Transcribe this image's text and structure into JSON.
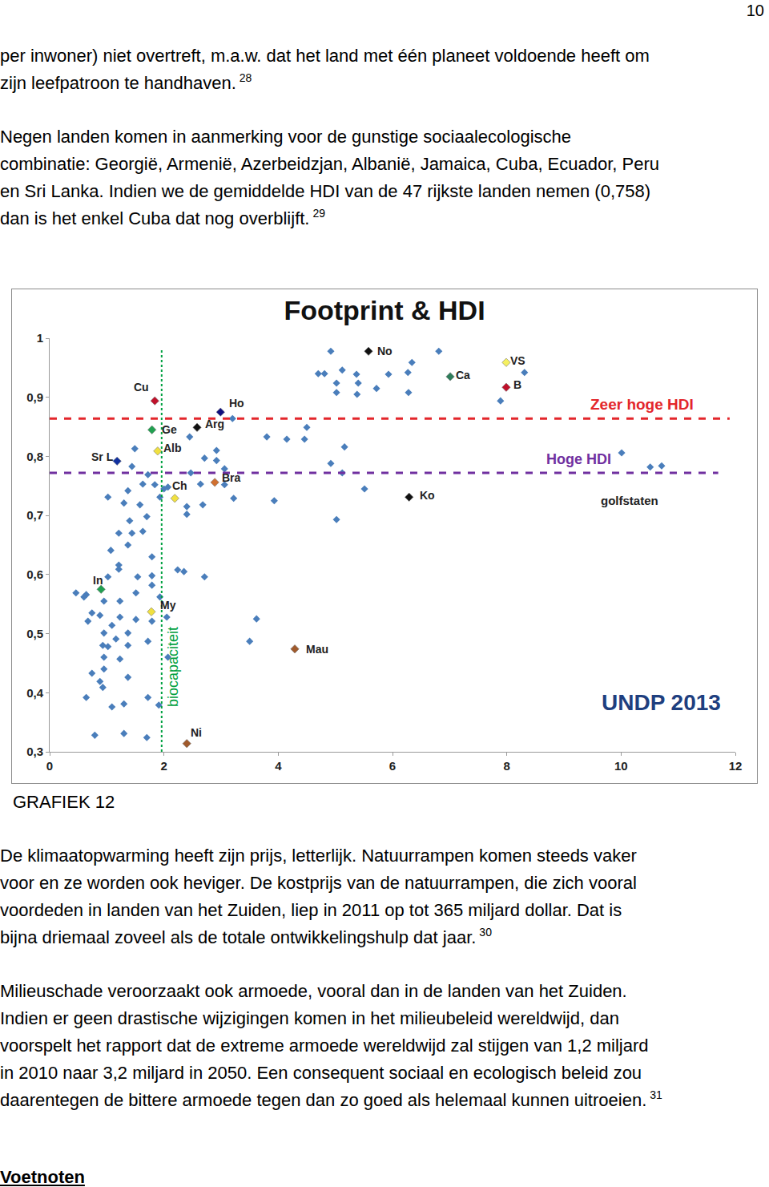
{
  "page_number": 10,
  "paragraphs_top": [
    {
      "lines": [
        "per inwoner) niet overtreft, m.a.w. dat het land met één planeet voldoende heeft om",
        "zijn leefpatroon te handhaven."
      ],
      "note": "28"
    },
    {
      "lines": [
        "Negen landen komen in aanmerking voor de gunstige sociaalecologische",
        "combinatie: Georgië, Armenië, Azerbeidzjan, Albanië, Jamaica, Cuba, Ecuador, Peru",
        "en Sri Lanka. Indien we de gemiddelde HDI van de 47 rijkste landen nemen (0,758)",
        "dan is het enkel Cuba dat nog overblijft."
      ],
      "note": "29"
    }
  ],
  "chart_data": {
    "type": "scatter",
    "title": "Footprint & HDI",
    "xlim": [
      0,
      12
    ],
    "xticks": [
      0,
      2,
      4,
      6,
      8,
      10,
      12
    ],
    "ylim": [
      0.3,
      1
    ],
    "yticks": [
      {
        "value": 0.3,
        "label": "0,3"
      },
      {
        "value": 0.4,
        "label": "0,4"
      },
      {
        "value": 0.5,
        "label": "0,5"
      },
      {
        "value": 0.6,
        "label": "0,6"
      },
      {
        "value": 0.7,
        "label": "0,7"
      },
      {
        "value": 0.8,
        "label": "0,8"
      },
      {
        "value": 0.9,
        "label": "0,9"
      },
      1
    ],
    "grid": false,
    "marker": "diamond",
    "color": "#4a7ebb",
    "x": [
      4.92,
      6.81,
      8.31,
      4.7,
      4.81,
      5.12,
      5.37,
      5.93,
      6.34,
      6.27,
      5.02,
      5.02,
      5.4,
      5.38,
      5.72,
      6.28,
      7.89,
      3.2,
      3.8,
      4.15,
      4.5,
      4.46,
      4.92,
      5.16,
      5.12,
      5.51,
      5.02,
      3.93,
      10.01,
      10.51,
      10.71,
      2.45,
      2.92,
      2.71,
      2.92,
      3.06,
      2.47,
      2.64,
      3.06,
      3.22,
      2.4,
      2.4,
      2.68,
      2.24,
      2.35,
      2.71,
      2.07,
      2.0,
      1.49,
      1.44,
      1.72,
      1.37,
      1.63,
      1.84,
      1.93,
      1.02,
      1.3,
      1.58,
      1.7,
      1.4,
      1.21,
      1.44,
      1.63,
      1.79,
      1.07,
      1.37,
      1.21,
      1.21,
      1.02,
      1.79,
      1.51,
      0.46,
      0.64,
      0.95,
      1.23,
      0.74,
      0.88,
      1.23,
      0.67,
      1.09,
      0.95,
      1.37,
      1.51,
      1.79,
      0.93,
      1.02,
      1.16,
      1.37,
      1.72,
      0.95,
      1.23,
      0.74,
      0.95,
      1.37,
      0.88,
      0.64,
      1.09,
      1.3,
      1.72,
      0.93,
      0.79,
      1.3,
      1.7,
      1.91,
      2.07,
      2.05,
      3.5,
      3.62,
      1.79,
      1.54,
      1.93,
      0.6
    ],
    "values": [
      0.978,
      0.978,
      0.942,
      0.94,
      0.94,
      0.946,
      0.939,
      0.939,
      0.959,
      0.942,
      0.924,
      0.908,
      0.924,
      0.905,
      0.915,
      0.908,
      0.894,
      0.864,
      0.833,
      0.829,
      0.849,
      0.829,
      0.788,
      0.816,
      0.772,
      0.745,
      0.693,
      0.725,
      0.806,
      0.782,
      0.784,
      0.833,
      0.81,
      0.797,
      0.793,
      0.779,
      0.772,
      0.753,
      0.752,
      0.729,
      0.715,
      0.702,
      0.718,
      0.608,
      0.605,
      0.596,
      0.748,
      0.745,
      0.813,
      0.783,
      0.769,
      0.742,
      0.753,
      0.752,
      0.731,
      0.731,
      0.721,
      0.718,
      0.698,
      0.691,
      0.67,
      0.67,
      0.673,
      0.63,
      0.641,
      0.65,
      0.616,
      0.609,
      0.596,
      0.598,
      0.569,
      0.569,
      0.566,
      0.555,
      0.555,
      0.535,
      0.531,
      0.528,
      0.521,
      0.514,
      0.501,
      0.501,
      0.524,
      0.521,
      0.48,
      0.478,
      0.491,
      0.48,
      0.487,
      0.46,
      0.457,
      0.433,
      0.44,
      0.426,
      0.419,
      0.392,
      0.376,
      0.381,
      0.392,
      0.409,
      0.328,
      0.331,
      0.324,
      0.379,
      0.46,
      0.528,
      0.487,
      0.525,
      0.582,
      0.596,
      0.562,
      0.562
    ],
    "points": [
      {
        "label": "Cu",
        "x": 1.84,
        "y": 0.894,
        "color": "#c0102a"
      },
      {
        "label": "Ge",
        "x": 1.79,
        "y": 0.845,
        "color": "#20a050"
      },
      {
        "label": "Alb",
        "x": 1.89,
        "y": 0.809,
        "color": "#f0e040"
      },
      {
        "label": "Ho",
        "x": 2.99,
        "y": 0.875,
        "color": "#101080"
      },
      {
        "label": "Arg",
        "x": 2.58,
        "y": 0.849,
        "color": "#111111"
      },
      {
        "label": "Sr L",
        "x": 1.18,
        "y": 0.792,
        "color": "#1030a0"
      },
      {
        "label": "Ch",
        "x": 2.19,
        "y": 0.729,
        "color": "#f0e040"
      },
      {
        "label": "Bra",
        "x": 2.89,
        "y": 0.756,
        "color": "#d07030"
      },
      {
        "label": "No",
        "x": 5.58,
        "y": 0.978,
        "color": "#111111"
      },
      {
        "label": "Ca",
        "x": 7.01,
        "y": 0.935,
        "color": "#2e7d5a"
      },
      {
        "label": "VS",
        "x": 7.99,
        "y": 0.959,
        "color": "#f5f060"
      },
      {
        "label": "B",
        "x": 7.99,
        "y": 0.917,
        "color": "#c0102a"
      },
      {
        "label": "Ko",
        "x": 6.29,
        "y": 0.731,
        "color": "#111111"
      },
      {
        "label": "In",
        "x": 0.9,
        "y": 0.575,
        "color": "#20a050"
      },
      {
        "label": "My",
        "x": 1.78,
        "y": 0.537,
        "color": "#f0e040"
      },
      {
        "label": "Mau",
        "x": 4.29,
        "y": 0.474,
        "color": "#a05a2c"
      },
      {
        "label": "Ni",
        "x": 2.4,
        "y": 0.314,
        "color": "#a05a2c"
      }
    ],
    "reference_lines": [
      {
        "label": "Zeer hoge HDI",
        "y": 0.864,
        "span": [
          0,
          11.9
        ],
        "color": "#e3262b",
        "line_style": "dash"
      },
      {
        "label": "Hoge HDI",
        "y": 0.772,
        "span": [
          0,
          11.7
        ],
        "color": "#7030a0",
        "line_style": "dash"
      },
      {
        "label": "biocapaciteit",
        "x": 1.96,
        "span": [
          0.3,
          0.98
        ],
        "color": "#00a040",
        "line_style": "dot"
      }
    ],
    "annotations": [
      {
        "text": "golfstaten",
        "x": 10.15,
        "y": 0.725
      },
      {
        "text": "UNDP 2013",
        "x": 10.71,
        "y": 0.383
      }
    ]
  },
  "caption": "GRAFIEK 12",
  "paragraphs_bottom": [
    {
      "lines": [
        "De klimaatopwarming heeft zijn prijs, letterlijk. Natuurrampen komen steeds vaker",
        "voor en ze worden ook heviger. De kostprijs van de natuurrampen, die zich vooral",
        "voordeden in landen van het Zuiden, liep in 2011 op tot 365 miljard dollar. Dat is",
        "bijna driemaal zoveel als de totale ontwikkelingshulp dat jaar."
      ],
      "note": "30"
    },
    {
      "lines": [
        "Milieuschade veroorzaakt ook armoede, vooral dan in de landen van het Zuiden.",
        "Indien er geen drastische wijzigingen komen in het milieubeleid wereldwijd, dan",
        "voorspelt het rapport dat de extreme armoede wereldwijd zal stijgen van 1,2 miljard",
        "in 2010 naar 3,2 miljard in 2050. Een consequent sociaal en ecologisch beleid zou",
        "daarentegen de bittere armoede tegen dan zo goed als helemaal kunnen uitroeien."
      ],
      "note": "31"
    }
  ],
  "heading": "Voetnoten"
}
